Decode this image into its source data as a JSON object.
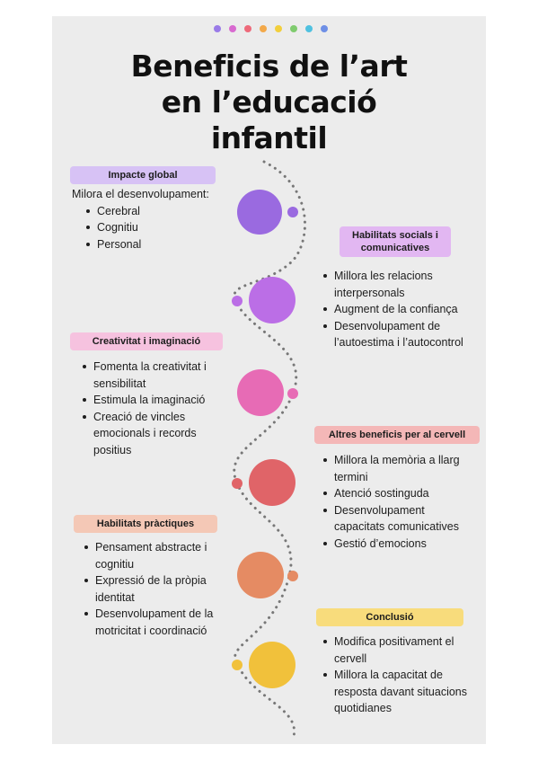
{
  "title": {
    "line1": "Beneficis de l’art",
    "line2": "en l’educació",
    "line3": "infantil"
  },
  "colors": {
    "background": "#ececec",
    "purple_dark": "#9a6ae0",
    "purple": "#bb6ee6",
    "pink": "#e76bb5",
    "red": "#e06468",
    "orange": "#e58b63",
    "yellow": "#f1c13b",
    "header_dots": [
      "#9a7be8",
      "#d86ad0",
      "#ee6a7a",
      "#f3a94a",
      "#f2cf3c",
      "#7fcb6e",
      "#4fc1e0",
      "#6e8fe6"
    ]
  },
  "sections": {
    "impacte": {
      "heading": "Impacte global",
      "intro": "Milora el desenvolupament:",
      "items": [
        "Cerebral",
        "Cognitiu",
        "Personal"
      ]
    },
    "socials": {
      "heading": "Habilitats socials i comunicatives",
      "items": [
        "Millora les relacions interpersonals",
        "Augment de la confiança",
        "Desenvolupament de l’autoestima i l’autocontrol"
      ]
    },
    "creativitat": {
      "heading": "Creativitat i imaginació",
      "items": [
        "Fomenta la creativitat i sensibilitat",
        "Estimula la imaginació",
        "Creació de vincles emocionals i records positius"
      ]
    },
    "cervell": {
      "heading": "Altres beneficis per al cervell",
      "items": [
        "Millora la memòria a llarg termini",
        "Atenció sostinguda",
        "Desenvolupament capacitats comunicatives",
        "Gestió d’emocions"
      ]
    },
    "practiques": {
      "heading": "Habilitats pràctiques",
      "items": [
        "Pensament abstracte i cognitiu",
        "Expressió de la pròpia identitat",
        "Desenvolupament de la motricitat i coordinació"
      ]
    },
    "conclusio": {
      "heading": "Conclusió",
      "items": [
        "Modifica positivament el cervell",
        "Millora la capacitat de resposta davant situacions quotidianes"
      ]
    }
  }
}
